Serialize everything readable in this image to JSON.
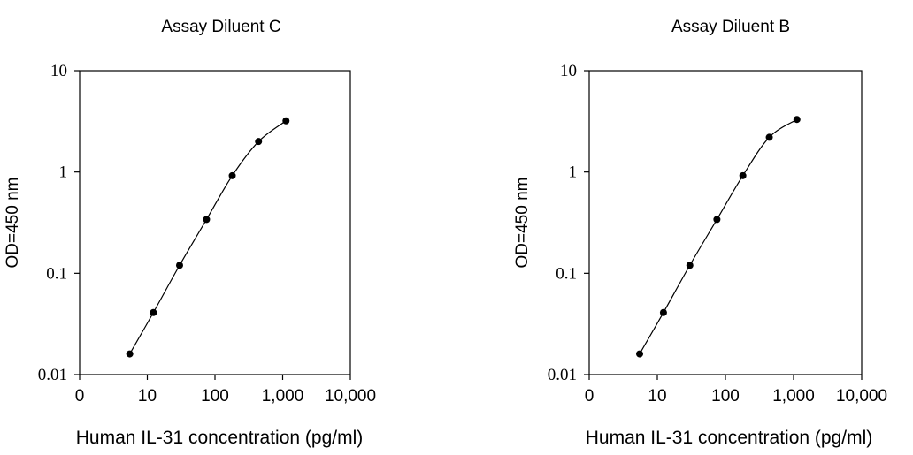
{
  "chart_data": [
    {
      "type": "line",
      "title": "Assay Diluent C",
      "xlabel": "Human IL-31 concentration (pg/ml)",
      "ylabel": "OD=450 nm",
      "x_scale": "log",
      "y_scale": "log",
      "xlim": [
        1,
        10000
      ],
      "ylim": [
        0.01,
        10
      ],
      "x_tick_values": [
        1,
        10,
        100,
        1000,
        10000
      ],
      "x_tick_labels": [
        "0",
        "10",
        "100",
        "1,000",
        "10,000"
      ],
      "y_tick_values": [
        0.01,
        0.1,
        1,
        10
      ],
      "y_tick_labels": [
        "0.01",
        "0.1",
        "1",
        "10"
      ],
      "grid": false,
      "series": [
        {
          "x": [
            5.5,
            12.3,
            30,
            75,
            180,
            440,
            1120
          ],
          "y": [
            0.016,
            0.041,
            0.12,
            0.34,
            0.92,
            2.0,
            3.2
          ]
        }
      ]
    },
    {
      "type": "line",
      "title": "Assay Diluent B",
      "xlabel": "Human IL-31 concentration (pg/ml)",
      "ylabel": "OD=450 nm",
      "x_scale": "log",
      "y_scale": "log",
      "xlim": [
        1,
        10000
      ],
      "ylim": [
        0.01,
        10
      ],
      "x_tick_values": [
        1,
        10,
        100,
        1000,
        10000
      ],
      "x_tick_labels": [
        "0",
        "10",
        "100",
        "1,000",
        "10,000"
      ],
      "y_tick_values": [
        0.01,
        0.1,
        1,
        10
      ],
      "y_tick_labels": [
        "0.01",
        "0.1",
        "1",
        "10"
      ],
      "grid": false,
      "series": [
        {
          "x": [
            5.5,
            12.3,
            30,
            75,
            180,
            440,
            1120
          ],
          "y": [
            0.016,
            0.041,
            0.12,
            0.34,
            0.92,
            2.2,
            3.3
          ]
        }
      ]
    }
  ]
}
